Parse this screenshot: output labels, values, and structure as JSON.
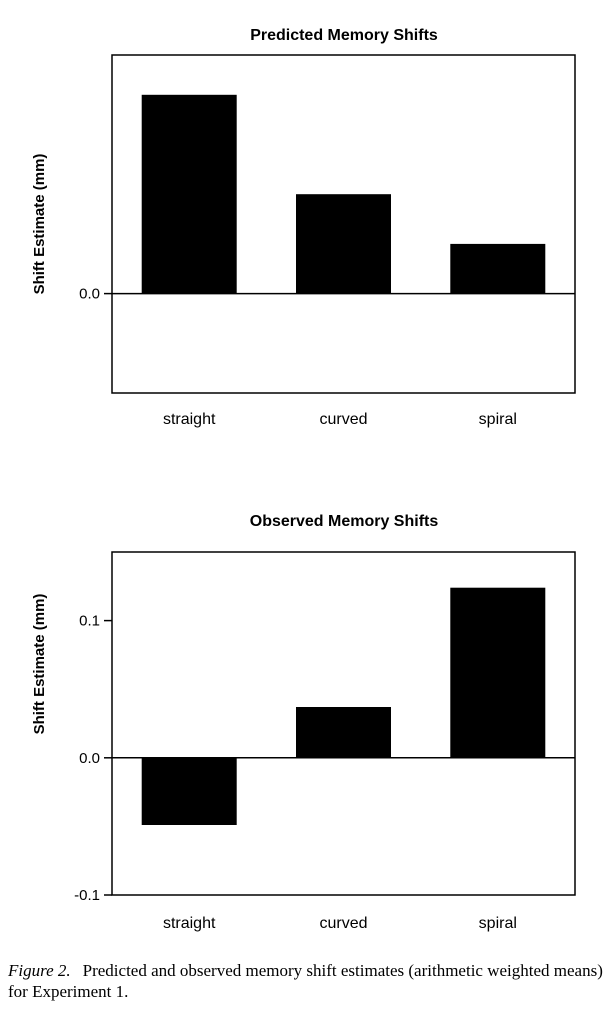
{
  "chart_data": [
    {
      "type": "bar",
      "title": "Predicted Memory Shifts",
      "ylabel": "Shift Estimate (mm)",
      "xlabel": "",
      "categories": [
        "straight",
        "curved",
        "spiral"
      ],
      "values": [
        0.2,
        0.1,
        0.05
      ],
      "ylim": [
        -0.1,
        0.24
      ],
      "yticks": [
        "0.0"
      ],
      "ytick_values": [
        0
      ],
      "grid": false
    },
    {
      "type": "bar",
      "title": "Observed Memory Shifts",
      "ylabel": "Shift Estimate (mm)",
      "xlabel": "",
      "categories": [
        "straight",
        "curved",
        "spiral"
      ],
      "values": [
        -0.049,
        0.037,
        0.124
      ],
      "ylim": [
        -0.1,
        0.15
      ],
      "yticks": [
        "0.1",
        "0.0",
        "-0.1"
      ],
      "ytick_values": [
        0.1,
        0,
        -0.1
      ],
      "grid": false
    }
  ],
  "caption": {
    "label": "Figure 2.",
    "text": "Predicted and observed memory shift estimates (arithmetic weighted means) for Experiment 1."
  }
}
